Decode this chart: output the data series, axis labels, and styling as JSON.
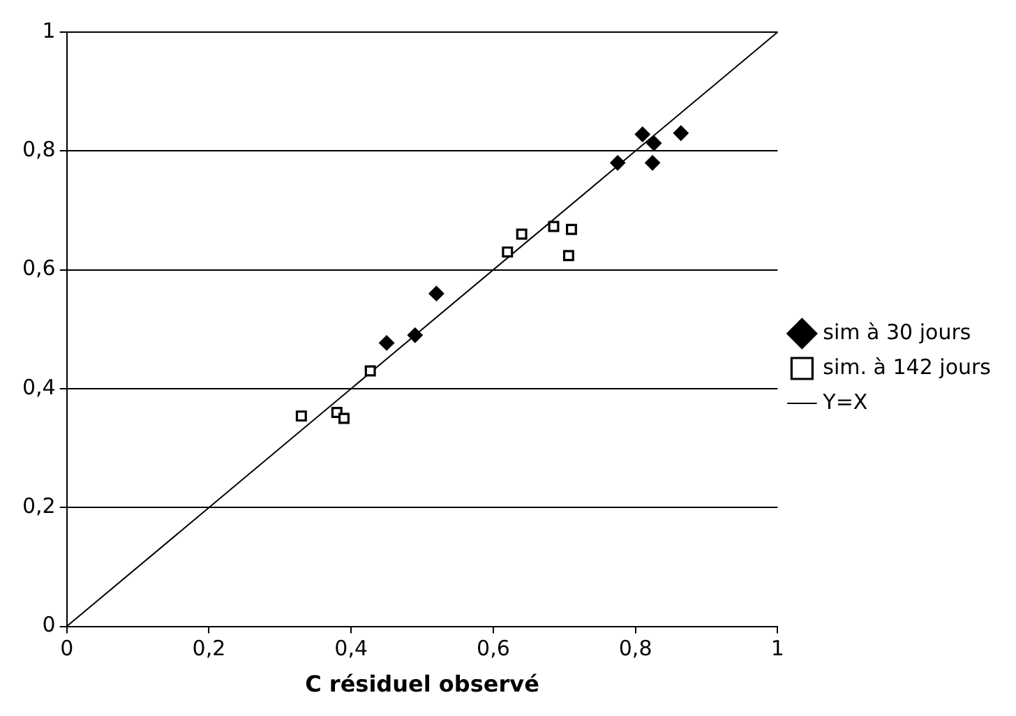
{
  "chart_data": {
    "type": "scatter",
    "xlabel": "C résiduel observé",
    "xlim": [
      0,
      1
    ],
    "xticks": [
      {
        "value": 0,
        "label": "0"
      },
      {
        "value": 0.2,
        "label": "0,2"
      },
      {
        "value": 0.4,
        "label": "0,4"
      },
      {
        "value": 0.6,
        "label": "0,6"
      },
      {
        "value": 0.8,
        "label": "0,8"
      },
      {
        "value": 1,
        "label": "1"
      }
    ],
    "ylim": [
      0,
      1
    ],
    "yticks": [
      {
        "value": 0,
        "label": "0"
      },
      {
        "value": 0.2,
        "label": "0,2"
      },
      {
        "value": 0.4,
        "label": "0,4"
      },
      {
        "value": 0.6,
        "label": "0,6"
      },
      {
        "value": 0.8,
        "label": "0,8"
      },
      {
        "value": 1,
        "label": "1"
      }
    ],
    "grid": "y",
    "legend": "right",
    "series": [
      {
        "name": "sim à 30 jours",
        "color": "#000000",
        "marker": "diamond",
        "x": [
          0.45,
          0.49,
          0.52,
          0.775,
          0.824,
          0.864,
          0.81,
          0.826
        ],
        "values": [
          0.477,
          0.49,
          0.56,
          0.78,
          0.78,
          0.83,
          0.828,
          0.813
        ]
      },
      {
        "name": "sim. à 142 jours",
        "color": "#000000",
        "marker": "square",
        "x": [
          0.33,
          0.38,
          0.39,
          0.427,
          0.62,
          0.64,
          0.685,
          0.71,
          0.706
        ],
        "values": [
          0.354,
          0.36,
          0.35,
          0.43,
          0.63,
          0.66,
          0.673,
          0.668,
          0.624
        ]
      },
      {
        "name": "Y=X",
        "type": "line",
        "color": "#000000",
        "marker": "none",
        "x": [
          0,
          1
        ],
        "values": [
          0,
          1
        ]
      }
    ]
  }
}
